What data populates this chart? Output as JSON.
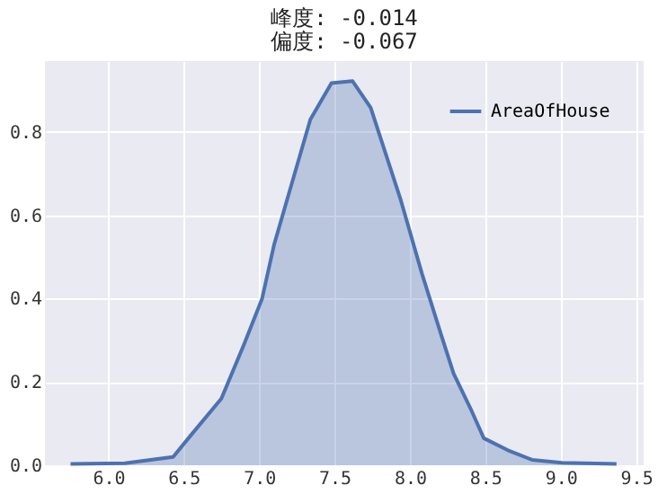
{
  "chart_data": {
    "type": "area",
    "title": "峰度: -0.014",
    "subtitle": "偏度: -0.067",
    "x": [
      5.75,
      6.11,
      6.43,
      6.55,
      6.75,
      6.9,
      7.02,
      7.1,
      7.22,
      7.34,
      7.48,
      7.62,
      7.74,
      7.94,
      8.08,
      8.21,
      8.29,
      8.41,
      8.49,
      8.65,
      8.81,
      9.01,
      9.37
    ],
    "series": [
      {
        "name": "AreaOfHouse",
        "color": "#4c72b0",
        "values": [
          0.003,
          0.005,
          0.02,
          0.073,
          0.16,
          0.29,
          0.4,
          0.53,
          0.68,
          0.83,
          0.917,
          0.922,
          0.858,
          0.636,
          0.46,
          0.31,
          0.22,
          0.13,
          0.065,
          0.036,
          0.013,
          0.006,
          0.003
        ]
      }
    ],
    "xlim": [
      5.58,
      9.55
    ],
    "ylim": [
      0,
      0.97
    ],
    "xticks": [
      {
        "value": 6,
        "label": "6.0"
      },
      6.5,
      {
        "value": 7,
        "label": "7.0"
      },
      7.5,
      {
        "value": 8,
        "label": "8.0"
      },
      8.5,
      {
        "value": 9,
        "label": "9.0"
      },
      9.5
    ],
    "yticks": [
      {
        "value": 0,
        "label": "0.0"
      },
      0.2,
      0.4,
      0.6,
      0.8
    ],
    "grid": true,
    "legend": "top right"
  }
}
